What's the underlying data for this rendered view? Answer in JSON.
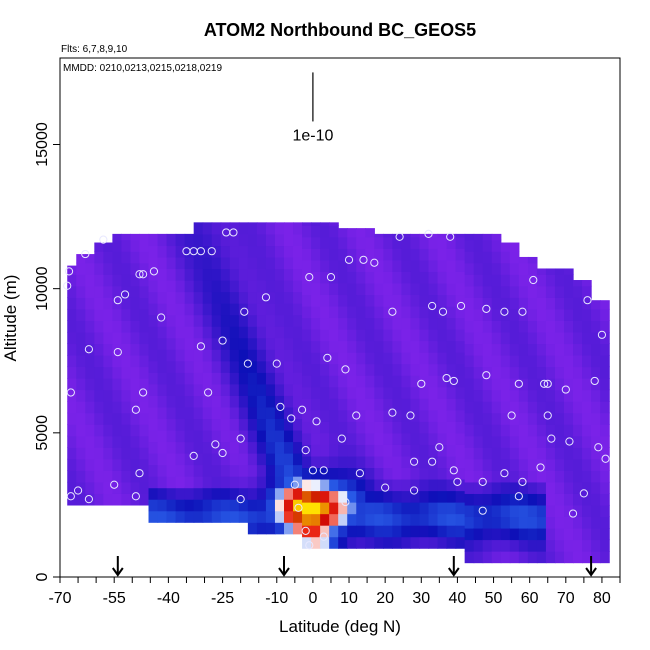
{
  "chart_data": {
    "type": "heatmap",
    "title": "ATOM2 Northbound BC_GEOS5",
    "annotations": {
      "flights": "Flts: 6,7,8,9,10",
      "dates": "MMDD: 0210,0213,0215,0218,0219",
      "scale_label": "1e-10"
    },
    "xlabel": "Latitude (deg N)",
    "ylabel": "Altitude (m)",
    "xlim": [
      -70,
      85
    ],
    "ylim": [
      0,
      18000
    ],
    "x_ticks": [
      -70,
      -55,
      -40,
      -25,
      -10,
      0,
      10,
      20,
      30,
      40,
      50,
      60,
      70,
      80
    ],
    "y_ticks": [
      0,
      5000,
      10000,
      15000
    ],
    "scale_bar": {
      "x": 0,
      "y_top": 17500,
      "y_bottom": 15800
    },
    "arrow_latitudes": [
      -54,
      -8,
      39,
      77
    ],
    "grid": false,
    "legend": "none",
    "colors": {
      "background_field": "#7a22e8",
      "low": "#0d10b8",
      "mid": "#ffffff",
      "high": "#c80000",
      "peak": "#ffe000"
    },
    "hotspot": {
      "center_lat": 0,
      "center_alt": 2400,
      "lat_spread": 13,
      "alt_spread": 1100
    },
    "column_profile": [
      {
        "lat": -68,
        "top": 10800
      },
      {
        "lat": -66,
        "top": 11200
      },
      {
        "lat": -62,
        "top": 11600
      },
      {
        "lat": -57,
        "top": 11900
      },
      {
        "lat": -45,
        "top": 11900
      },
      {
        "lat": -35,
        "top": 12300
      },
      {
        "lat": -15,
        "top": 12300
      },
      {
        "lat": 5,
        "top": 12100
      },
      {
        "lat": 15,
        "top": 11900
      },
      {
        "lat": 45,
        "top": 11900
      },
      {
        "lat": 50,
        "top": 11600
      },
      {
        "lat": 55,
        "top": 11100
      },
      {
        "lat": 62,
        "top": 10700
      },
      {
        "lat": 70,
        "top": 10300
      },
      {
        "lat": 75,
        "top": 9600
      },
      {
        "lat": 80,
        "top": 9000
      }
    ],
    "sample_points": [
      [
        -68,
        10100
      ],
      [
        -67.5,
        10600
      ],
      [
        -63,
        11200
      ],
      [
        -58,
        11700
      ],
      [
        -54,
        9600
      ],
      [
        -52,
        9800
      ],
      [
        -48,
        10500
      ],
      [
        -47,
        10500
      ],
      [
        -44,
        10600
      ],
      [
        -35,
        11300
      ],
      [
        -33,
        11300
      ],
      [
        -31,
        11300
      ],
      [
        -28,
        11300
      ],
      [
        -24,
        11950
      ],
      [
        -22,
        11950
      ],
      [
        -19,
        9200
      ],
      [
        -13,
        9700
      ],
      [
        -1,
        10400
      ],
      [
        5,
        10400
      ],
      [
        10,
        11000
      ],
      [
        14,
        11000
      ],
      [
        17,
        10900
      ],
      [
        -62,
        7900
      ],
      [
        -54,
        7800
      ],
      [
        -47,
        6400
      ],
      [
        -31,
        8000
      ],
      [
        -25,
        8200
      ],
      [
        -18,
        7400
      ],
      [
        -10,
        7400
      ],
      [
        -9,
        5900
      ],
      [
        -6,
        5500
      ],
      [
        1,
        5400
      ],
      [
        4,
        7600
      ],
      [
        9,
        7200
      ],
      [
        12,
        5600
      ],
      [
        22,
        5700
      ],
      [
        27,
        5600
      ],
      [
        30,
        6700
      ],
      [
        37,
        6900
      ],
      [
        39,
        6800
      ],
      [
        48,
        7000
      ],
      [
        55,
        5600
      ],
      [
        57,
        6700
      ],
      [
        64,
        6700
      ],
      [
        65,
        6700
      ],
      [
        70,
        6500
      ],
      [
        65,
        5600
      ],
      [
        71,
        4700
      ],
      [
        78,
        6800
      ],
      [
        79,
        4500
      ],
      [
        81,
        4100
      ],
      [
        -67,
        6400
      ],
      [
        -65,
        3000
      ],
      [
        -62,
        2700
      ],
      [
        -67,
        2800
      ],
      [
        -55,
        3200
      ],
      [
        -49,
        5800
      ],
      [
        -48,
        3600
      ],
      [
        -49,
        2800
      ],
      [
        -33,
        4200
      ],
      [
        -27,
        4600
      ],
      [
        -25,
        4300
      ],
      [
        -20,
        2700
      ],
      [
        -20,
        4800
      ],
      [
        -3,
        5800
      ],
      [
        -2,
        4400
      ],
      [
        0,
        3700
      ],
      [
        -5,
        3200
      ],
      [
        3,
        3700
      ],
      [
        -4,
        2400
      ],
      [
        -2,
        1600
      ],
      [
        3,
        1400
      ],
      [
        8,
        4800
      ],
      [
        9,
        2600
      ],
      [
        13,
        3600
      ],
      [
        20,
        3100
      ],
      [
        28,
        3000
      ],
      [
        28,
        4000
      ],
      [
        33,
        4000
      ],
      [
        35,
        4500
      ],
      [
        39,
        3700
      ],
      [
        40,
        3300
      ],
      [
        47,
        3300
      ],
      [
        47,
        2300
      ],
      [
        53,
        3600
      ],
      [
        57,
        2800
      ],
      [
        58,
        3300
      ],
      [
        63,
        3800
      ],
      [
        75,
        2900
      ],
      [
        72,
        2200
      ],
      [
        66,
        4800
      ],
      [
        -1,
        1100
      ],
      [
        22,
        9200
      ],
      [
        33,
        9400
      ],
      [
        36,
        9200
      ],
      [
        41,
        9400
      ],
      [
        48,
        9300
      ],
      [
        53,
        9200
      ],
      [
        58,
        9200
      ],
      [
        61,
        10300
      ],
      [
        76,
        9600
      ],
      [
        80,
        8400
      ],
      [
        32,
        11900
      ],
      [
        38,
        11800
      ],
      [
        24,
        11800
      ],
      [
        -29,
        6400
      ],
      [
        -42,
        9000
      ]
    ]
  }
}
